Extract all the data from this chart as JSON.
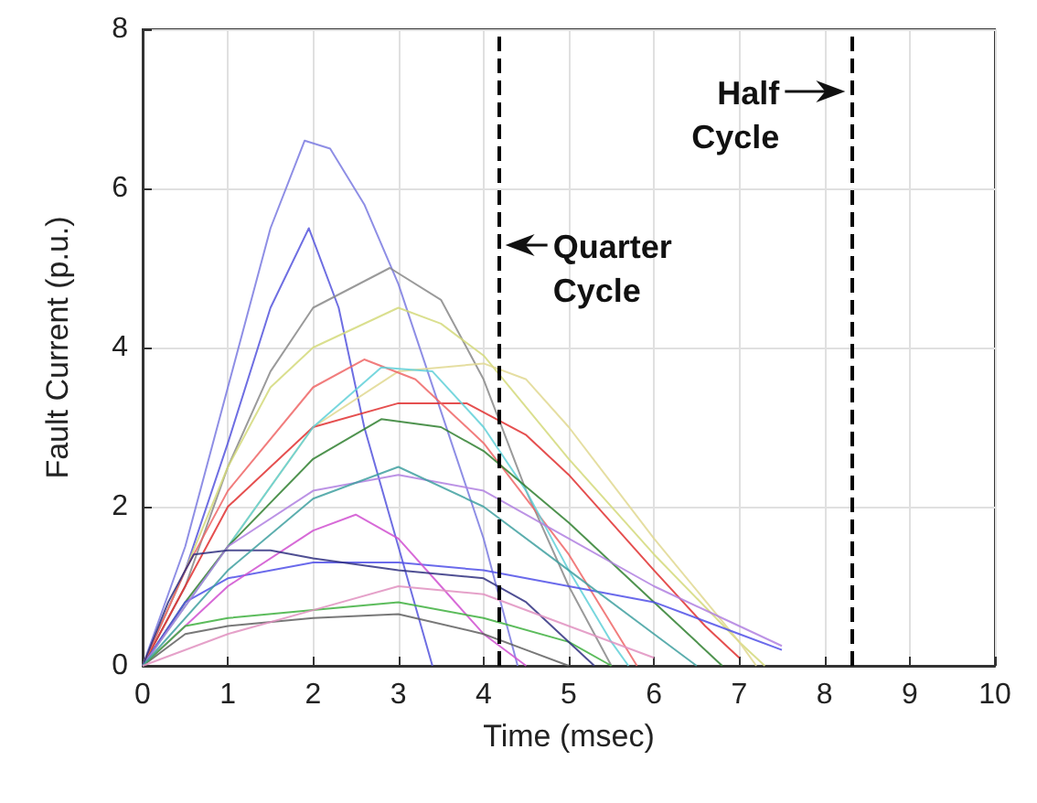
{
  "chart_data": {
    "type": "line",
    "xlabel": "Time (msec)",
    "ylabel": "Fault Current (p.u.)",
    "xlim": [
      0,
      10
    ],
    "xticks": [
      0,
      1,
      2,
      3,
      4,
      5,
      6,
      7,
      8,
      9,
      10
    ],
    "ylim": [
      0,
      8
    ],
    "yticks": [
      0,
      2,
      4,
      6,
      8
    ],
    "grid": true,
    "marker": "none",
    "line_style": "solid",
    "series": [
      {
        "color": "#7a7ae0",
        "x": [
          0,
          0.5,
          1,
          1.5,
          1.9,
          2.2,
          2.6,
          3,
          3.5,
          4,
          4.4
        ],
        "values": [
          0,
          1.5,
          3.5,
          5.5,
          6.6,
          6.5,
          5.8,
          4.8,
          3.2,
          1.6,
          0
        ]
      },
      {
        "color": "#5555dd",
        "x": [
          0,
          0.5,
          1,
          1.5,
          1.95,
          2.3,
          2.6,
          3,
          3.4
        ],
        "values": [
          0,
          1.2,
          2.8,
          4.5,
          5.5,
          4.5,
          3,
          1.5,
          0
        ]
      },
      {
        "color": "#888888",
        "x": [
          0,
          0.5,
          1,
          1.5,
          2,
          2.9,
          3.5,
          4,
          4.5,
          5,
          5.5
        ],
        "values": [
          0,
          1,
          2.5,
          3.7,
          4.5,
          5,
          4.6,
          3.6,
          2.2,
          1,
          0
        ]
      },
      {
        "color": "#d4d97a",
        "x": [
          0,
          0.5,
          1,
          1.5,
          2,
          3,
          3.5,
          4,
          5,
          6,
          7,
          7.3
        ],
        "values": [
          0,
          1.2,
          2.5,
          3.5,
          4,
          4.5,
          4.3,
          3.9,
          2.6,
          1.4,
          0.3,
          0
        ]
      },
      {
        "color": "#e0d890",
        "x": [
          0,
          1,
          2,
          3,
          4,
          4.5,
          5,
          6,
          7,
          7.2
        ],
        "values": [
          0,
          1.5,
          3,
          3.7,
          3.8,
          3.6,
          3,
          1.6,
          0.3,
          0
        ]
      },
      {
        "color": "#e03030",
        "x": [
          0,
          0.5,
          1,
          2,
          3,
          3.8,
          4.5,
          5,
          6,
          6.6,
          7
        ],
        "values": [
          0,
          1,
          2,
          3,
          3.3,
          3.3,
          2.9,
          2.4,
          1.2,
          0.5,
          0.1
        ]
      },
      {
        "color": "#ee6666",
        "x": [
          0,
          0.5,
          1,
          2,
          2.6,
          3.2,
          4,
          5,
          5.8
        ],
        "values": [
          0,
          1.2,
          2.2,
          3.5,
          3.85,
          3.6,
          2.8,
          1.4,
          0
        ]
      },
      {
        "color": "#60d0d8",
        "x": [
          0,
          1,
          2,
          2.8,
          3.4,
          4,
          4.5,
          5,
          5.5,
          5.7
        ],
        "values": [
          0,
          1.5,
          3,
          3.75,
          3.7,
          3,
          2.2,
          1.2,
          0.3,
          0
        ]
      },
      {
        "color": "#308030",
        "x": [
          0,
          0.5,
          1,
          2,
          2.8,
          3.5,
          4,
          5,
          6,
          6.8
        ],
        "values": [
          0,
          0.8,
          1.5,
          2.6,
          3.1,
          3,
          2.7,
          1.8,
          0.8,
          0
        ]
      },
      {
        "color": "#5050e8",
        "x": [
          0,
          0.5,
          1,
          2,
          3,
          4,
          5,
          6,
          7,
          7.5
        ],
        "values": [
          0,
          0.8,
          1.1,
          1.3,
          1.3,
          1.2,
          1,
          0.8,
          0.4,
          0.2
        ]
      },
      {
        "color": "#b080e0",
        "x": [
          0,
          1,
          2,
          3,
          4,
          5,
          6,
          7,
          7.5
        ],
        "values": [
          0,
          1.5,
          2.2,
          2.4,
          2.2,
          1.6,
          1,
          0.5,
          0.25
        ]
      },
      {
        "color": "#d050d0",
        "x": [
          0,
          0.5,
          1,
          2,
          2.5,
          3,
          3.5,
          4,
          4.5
        ],
        "values": [
          0,
          0.5,
          1,
          1.7,
          1.9,
          1.6,
          1,
          0.4,
          0
        ]
      },
      {
        "color": "#606060",
        "x": [
          0,
          0.5,
          1,
          2,
          3,
          4,
          4.5,
          5
        ],
        "values": [
          0,
          0.4,
          0.5,
          0.6,
          0.65,
          0.4,
          0.2,
          0
        ]
      },
      {
        "color": "#40b040",
        "x": [
          0,
          0.5,
          1,
          2,
          3,
          4,
          5,
          5.5
        ],
        "values": [
          0,
          0.5,
          0.6,
          0.7,
          0.8,
          0.6,
          0.3,
          0
        ]
      },
      {
        "color": "#303080",
        "x": [
          0,
          0.3,
          0.6,
          1,
          1.5,
          2,
          3,
          4,
          4.5,
          5,
          5.3
        ],
        "values": [
          0,
          0.8,
          1.4,
          1.45,
          1.45,
          1.35,
          1.2,
          1.1,
          0.8,
          0.3,
          0
        ]
      },
      {
        "color": "#40a0a0",
        "x": [
          0,
          1,
          2,
          3,
          4,
          5,
          6,
          6.5
        ],
        "values": [
          0,
          1.2,
          2.1,
          2.5,
          2,
          1.2,
          0.4,
          0
        ]
      },
      {
        "color": "#e090c0",
        "x": [
          0,
          1,
          2,
          3,
          4,
          5,
          6
        ],
        "values": [
          0,
          0.4,
          0.7,
          1,
          0.9,
          0.5,
          0.1
        ]
      }
    ],
    "ref_lines": [
      {
        "axis": "x",
        "value": 4.17,
        "label": "Quarter Cycle",
        "color": "#000000",
        "line_style": "dashed"
      },
      {
        "axis": "x",
        "value": 8.33,
        "label": "Half Cycle",
        "color": "#000000",
        "line_style": "dashed"
      }
    ]
  }
}
